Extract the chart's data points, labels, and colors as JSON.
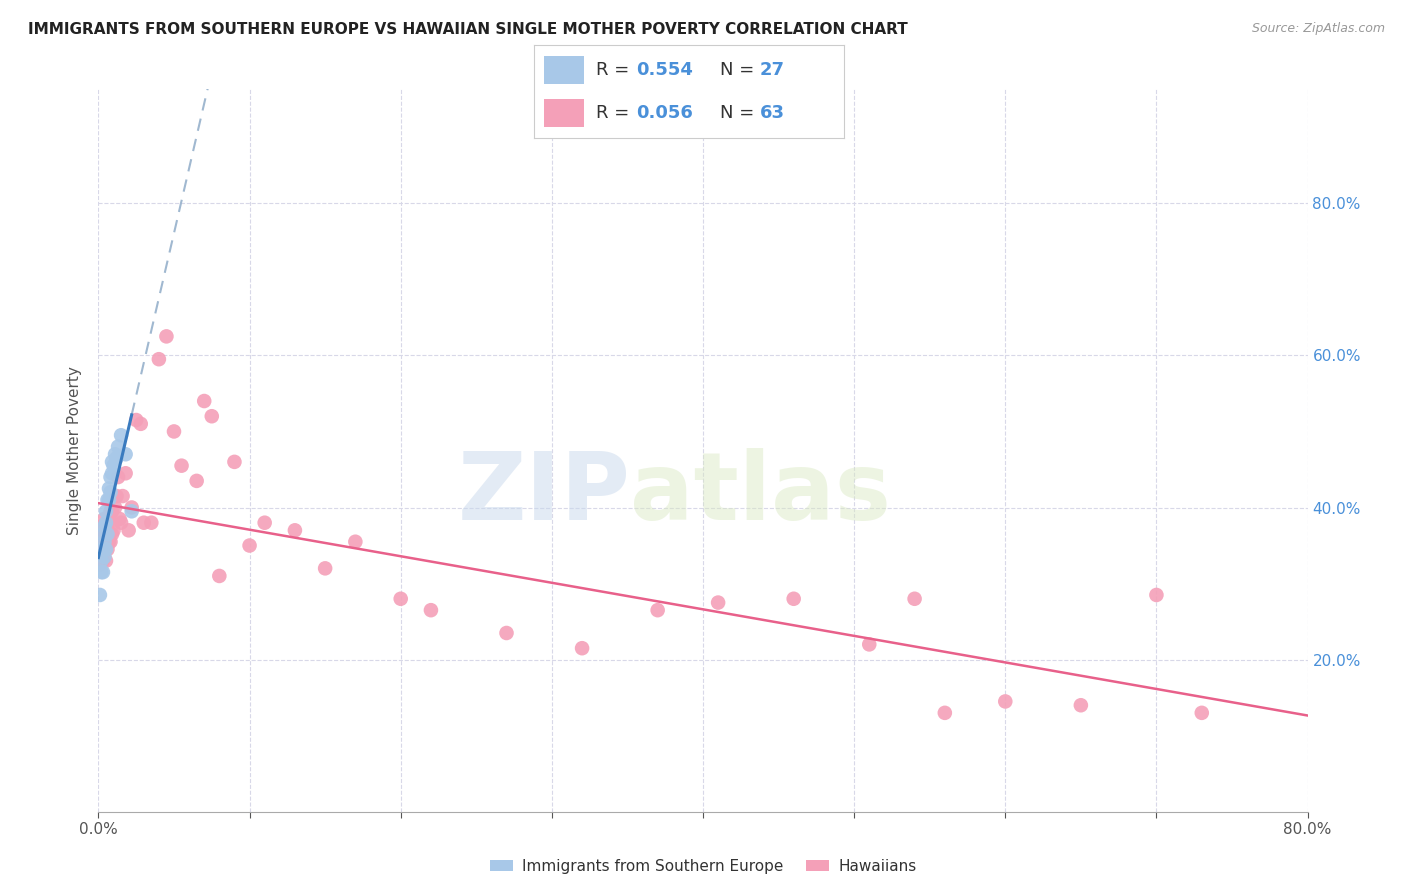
{
  "title": "IMMIGRANTS FROM SOUTHERN EUROPE VS HAWAIIAN SINGLE MOTHER POVERTY CORRELATION CHART",
  "source": "Source: ZipAtlas.com",
  "ylabel": "Single Mother Poverty",
  "xlim": [
    0.0,
    0.8
  ],
  "ylim": [
    0.0,
    0.95
  ],
  "legend_label_blue": "Immigrants from Southern Europe",
  "legend_label_pink": "Hawaiians",
  "blue_color": "#a8c8e8",
  "pink_color": "#f4a0b8",
  "blue_line_color": "#3a7bbf",
  "pink_line_color": "#e8608a",
  "dashed_line_color": "#a0b8d0",
  "watermark_zip": "ZIP",
  "watermark_atlas": "atlas",
  "blue_scatter_x": [
    0.001,
    0.002,
    0.002,
    0.003,
    0.003,
    0.003,
    0.004,
    0.004,
    0.004,
    0.005,
    0.005,
    0.005,
    0.006,
    0.006,
    0.007,
    0.007,
    0.008,
    0.008,
    0.009,
    0.009,
    0.01,
    0.011,
    0.012,
    0.013,
    0.015,
    0.018,
    0.022
  ],
  "blue_scatter_y": [
    0.285,
    0.315,
    0.33,
    0.315,
    0.345,
    0.365,
    0.335,
    0.355,
    0.375,
    0.345,
    0.38,
    0.395,
    0.365,
    0.41,
    0.41,
    0.425,
    0.42,
    0.44,
    0.445,
    0.46,
    0.455,
    0.47,
    0.465,
    0.48,
    0.495,
    0.47,
    0.395
  ],
  "pink_scatter_x": [
    0.001,
    0.001,
    0.002,
    0.002,
    0.002,
    0.003,
    0.003,
    0.003,
    0.004,
    0.004,
    0.004,
    0.005,
    0.005,
    0.006,
    0.006,
    0.007,
    0.007,
    0.008,
    0.008,
    0.009,
    0.009,
    0.01,
    0.011,
    0.012,
    0.013,
    0.014,
    0.015,
    0.016,
    0.018,
    0.02,
    0.022,
    0.025,
    0.028,
    0.03,
    0.035,
    0.04,
    0.045,
    0.05,
    0.055,
    0.065,
    0.07,
    0.075,
    0.08,
    0.09,
    0.1,
    0.11,
    0.13,
    0.15,
    0.17,
    0.2,
    0.22,
    0.27,
    0.32,
    0.37,
    0.41,
    0.46,
    0.51,
    0.54,
    0.56,
    0.6,
    0.65,
    0.7,
    0.73
  ],
  "pink_scatter_y": [
    0.325,
    0.345,
    0.33,
    0.36,
    0.375,
    0.33,
    0.345,
    0.37,
    0.355,
    0.37,
    0.385,
    0.33,
    0.365,
    0.345,
    0.375,
    0.355,
    0.385,
    0.355,
    0.395,
    0.365,
    0.395,
    0.37,
    0.4,
    0.415,
    0.44,
    0.385,
    0.38,
    0.415,
    0.445,
    0.37,
    0.4,
    0.515,
    0.51,
    0.38,
    0.38,
    0.595,
    0.625,
    0.5,
    0.455,
    0.435,
    0.54,
    0.52,
    0.31,
    0.46,
    0.35,
    0.38,
    0.37,
    0.32,
    0.355,
    0.28,
    0.265,
    0.235,
    0.215,
    0.265,
    0.275,
    0.28,
    0.22,
    0.28,
    0.13,
    0.145,
    0.14,
    0.285,
    0.13
  ]
}
